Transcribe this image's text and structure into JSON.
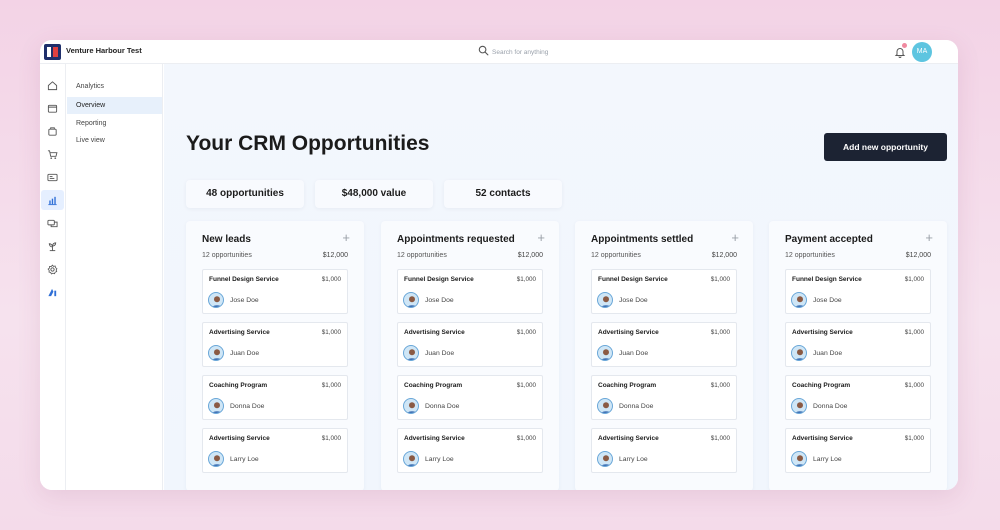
{
  "app": {
    "title": "Venture Harbour Test"
  },
  "search": {
    "placeholder": "Search for anything"
  },
  "user": {
    "initials": "MA"
  },
  "subnav": [
    {
      "label": "Analytics"
    },
    {
      "label": "Overview",
      "active": true
    },
    {
      "label": "Reporting"
    },
    {
      "label": "Live view"
    }
  ],
  "page": {
    "title": "Your CRM Opportunities",
    "add_button": "Add new opportunity"
  },
  "stats": [
    "48 opportunities",
    "$48,000 value",
    "52 contacts"
  ],
  "columns": [
    {
      "title": "New leads",
      "count": "12 opportunities",
      "total": "$12,000",
      "cards": [
        {
          "title": "Funnel Design Service",
          "amount": "$1,000",
          "person": "Jose Doe"
        },
        {
          "title": "Advertising Service",
          "amount": "$1,000",
          "person": "Juan Doe"
        },
        {
          "title": "Coaching Program",
          "amount": "$1,000",
          "person": "Donna Doe"
        },
        {
          "title": "Advertising Service",
          "amount": "$1,000",
          "person": "Larry Loe"
        }
      ]
    },
    {
      "title": "Appointments requested",
      "count": "12 opportunities",
      "total": "$12,000",
      "cards": [
        {
          "title": "Funnel Design Service",
          "amount": "$1,000",
          "person": "Jose Doe"
        },
        {
          "title": "Advertising Service",
          "amount": "$1,000",
          "person": "Juan Doe"
        },
        {
          "title": "Coaching Program",
          "amount": "$1,000",
          "person": "Donna Doe"
        },
        {
          "title": "Advertising Service",
          "amount": "$1,000",
          "person": "Larry Loe"
        }
      ]
    },
    {
      "title": "Appointments settled",
      "count": "12 opportunities",
      "total": "$12,000",
      "cards": [
        {
          "title": "Funnel Design Service",
          "amount": "$1,000",
          "person": "Jose Doe"
        },
        {
          "title": "Advertising Service",
          "amount": "$1,000",
          "person": "Juan Doe"
        },
        {
          "title": "Coaching Program",
          "amount": "$1,000",
          "person": "Donna Doe"
        },
        {
          "title": "Advertising Service",
          "amount": "$1,000",
          "person": "Larry Loe"
        }
      ]
    },
    {
      "title": "Payment accepted",
      "count": "12 opportunities",
      "total": "$12,000",
      "cards": [
        {
          "title": "Funnel Design Service",
          "amount": "$1,000",
          "person": "Jose Doe"
        },
        {
          "title": "Advertising Service",
          "amount": "$1,000",
          "person": "Juan Doe"
        },
        {
          "title": "Coaching Program",
          "amount": "$1,000",
          "person": "Donna Doe"
        },
        {
          "title": "Advertising Service",
          "amount": "$1,000",
          "person": "Larry Loe"
        }
      ]
    }
  ],
  "icons": {
    "rail": [
      "home-icon",
      "folder-icon",
      "box-icon",
      "cart-icon",
      "card-icon",
      "analytics-icon",
      "chat-icon",
      "plant-icon",
      "gear-icon",
      "brand-icon"
    ],
    "active_rail": "analytics-icon"
  },
  "colors": {
    "accent": "#1c2333",
    "active_bg": "#e7f0fb",
    "avatar": "#5ec5e0",
    "notification": "#f08aa0"
  }
}
